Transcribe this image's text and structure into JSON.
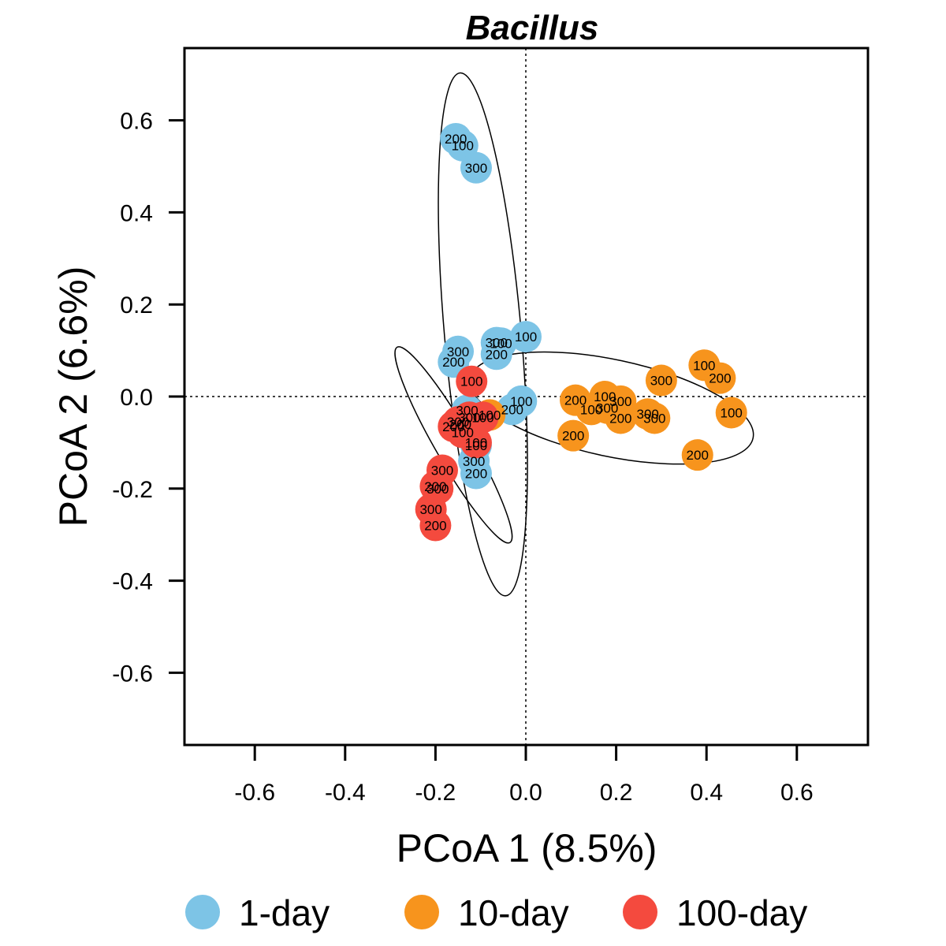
{
  "chart_data": {
    "type": "scatter",
    "title": "Bacillus",
    "xlabel": "PCoA 1 (8.5%)",
    "ylabel": "PCoA 2 (6.6%)",
    "xlim": [
      -0.75,
      0.75
    ],
    "ylim": [
      -0.75,
      0.75
    ],
    "xticks": [
      -0.6,
      -0.4,
      -0.2,
      0.0,
      0.2,
      0.4,
      0.6
    ],
    "yticks": [
      -0.6,
      -0.4,
      -0.2,
      0.0,
      0.2,
      0.4,
      0.6
    ],
    "xtick_labels": [
      "-0.6",
      "-0.4",
      "-0.2",
      "0.0",
      "0.2",
      "0.4",
      "0.6"
    ],
    "ytick_labels": [
      "-0.6",
      "-0.4",
      "-0.2",
      "0.0",
      "0.2",
      "0.4",
      "0.6"
    ],
    "reference_lines": {
      "x": 0,
      "y": 0,
      "style": "dotted"
    },
    "legend": {
      "position": "bottom",
      "orientation": "horizontal"
    },
    "series": [
      {
        "name": "1-day",
        "color": "#7dc4e6",
        "points": [
          {
            "x": -0.155,
            "y": 0.56,
            "label": "200"
          },
          {
            "x": -0.14,
            "y": 0.545,
            "label": "100"
          },
          {
            "x": -0.11,
            "y": 0.497,
            "label": "300"
          },
          {
            "x": -0.15,
            "y": 0.098,
            "label": "300"
          },
          {
            "x": -0.16,
            "y": 0.075,
            "label": "200"
          },
          {
            "x": -0.065,
            "y": 0.117,
            "label": "300"
          },
          {
            "x": -0.055,
            "y": 0.116,
            "label": "100"
          },
          {
            "x": 0.0,
            "y": 0.13,
            "label": "100"
          },
          {
            "x": -0.065,
            "y": 0.092,
            "label": "200"
          },
          {
            "x": -0.01,
            "y": -0.01,
            "label": "100"
          },
          {
            "x": -0.03,
            "y": -0.028,
            "label": "200"
          },
          {
            "x": -0.13,
            "y": -0.03,
            "label": "300"
          },
          {
            "x": -0.11,
            "y": -0.106,
            "label": "100"
          },
          {
            "x": -0.115,
            "y": -0.14,
            "label": "300"
          },
          {
            "x": -0.11,
            "y": -0.167,
            "label": "200"
          }
        ]
      },
      {
        "name": "10-day",
        "color": "#f7941d",
        "points": [
          {
            "x": 0.11,
            "y": -0.008,
            "label": "200"
          },
          {
            "x": 0.175,
            "y": 0.0,
            "label": "100"
          },
          {
            "x": 0.21,
            "y": -0.01,
            "label": "300"
          },
          {
            "x": 0.145,
            "y": -0.028,
            "label": "100"
          },
          {
            "x": 0.18,
            "y": -0.025,
            "label": "300"
          },
          {
            "x": 0.21,
            "y": -0.047,
            "label": "200"
          },
          {
            "x": 0.27,
            "y": -0.038,
            "label": "300"
          },
          {
            "x": 0.285,
            "y": -0.047,
            "label": "300"
          },
          {
            "x": 0.3,
            "y": 0.035,
            "label": "300"
          },
          {
            "x": 0.105,
            "y": -0.085,
            "label": "200"
          },
          {
            "x": 0.395,
            "y": 0.068,
            "label": "100"
          },
          {
            "x": 0.43,
            "y": 0.04,
            "label": "200"
          },
          {
            "x": 0.455,
            "y": -0.035,
            "label": "100"
          },
          {
            "x": 0.38,
            "y": -0.127,
            "label": "200"
          },
          {
            "x": -0.08,
            "y": -0.04,
            "label": "100"
          }
        ]
      },
      {
        "name": "100-day",
        "color": "#f44a3e",
        "points": [
          {
            "x": -0.12,
            "y": 0.033,
            "label": "100"
          },
          {
            "x": -0.125,
            "y": -0.045,
            "label": "300"
          },
          {
            "x": -0.15,
            "y": -0.055,
            "label": "300"
          },
          {
            "x": -0.145,
            "y": -0.06,
            "label": "200"
          },
          {
            "x": -0.16,
            "y": -0.065,
            "label": "200"
          },
          {
            "x": -0.095,
            "y": -0.045,
            "label": "100"
          },
          {
            "x": -0.14,
            "y": -0.078,
            "label": "100"
          },
          {
            "x": -0.11,
            "y": -0.1,
            "label": "100"
          },
          {
            "x": -0.185,
            "y": -0.16,
            "label": "300"
          },
          {
            "x": -0.2,
            "y": -0.195,
            "label": "200"
          },
          {
            "x": -0.195,
            "y": -0.2,
            "label": "300"
          },
          {
            "x": -0.21,
            "y": -0.245,
            "label": "300"
          },
          {
            "x": -0.2,
            "y": -0.28,
            "label": "200"
          }
        ]
      }
    ],
    "ellipses": [
      {
        "group": "1-day",
        "cx": -0.095,
        "cy": 0.135,
        "rx": 0.085,
        "ry": 0.57,
        "angle_deg": -5
      },
      {
        "group": "10-day",
        "cx": 0.19,
        "cy": -0.025,
        "rx": 0.32,
        "ry": 0.105,
        "angle_deg": 12
      },
      {
        "group": "100-day",
        "cx": -0.16,
        "cy": -0.105,
        "rx": 0.04,
        "ry": 0.245,
        "angle_deg": -30
      }
    ]
  }
}
